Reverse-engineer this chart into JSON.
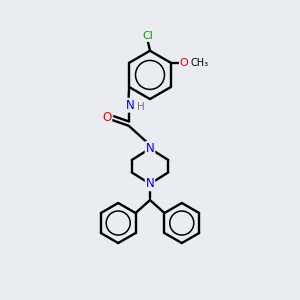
{
  "background_color": "#ebebf2",
  "bond_color": "#000000",
  "atom_colors": {
    "N": "#0000ee",
    "O": "#ee0000",
    "Cl": "#00aa00",
    "C": "#000000",
    "H": "#777777"
  },
  "figsize": [
    3.0,
    3.0
  ],
  "dpi": 100
}
